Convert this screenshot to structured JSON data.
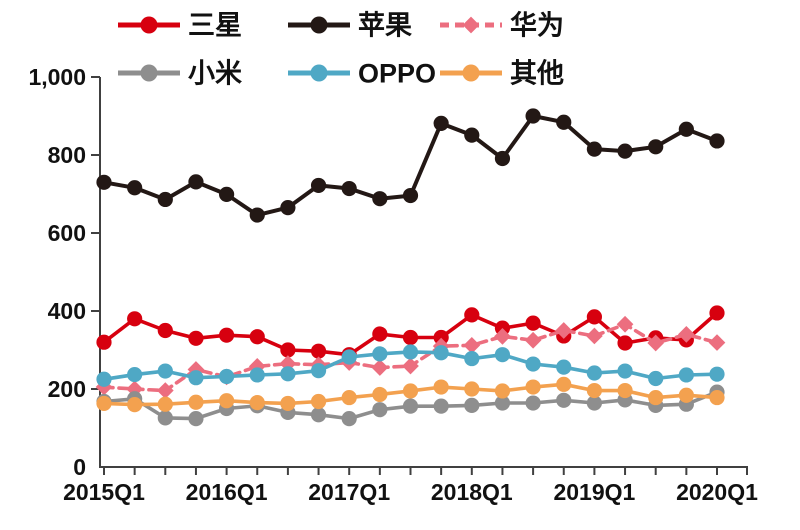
{
  "chart_data": {
    "type": "line",
    "title": "",
    "background": "#ffffff",
    "axis_color": "#404040",
    "grid": false,
    "legend_position": "top",
    "x": [
      "2015Q1",
      "2015Q2",
      "2015Q3",
      "2015Q4",
      "2016Q1",
      "2016Q2",
      "2016Q3",
      "2016Q4",
      "2017Q1",
      "2017Q2",
      "2017Q3",
      "2017Q4",
      "2018Q1",
      "2018Q2",
      "2018Q3",
      "2018Q4",
      "2019Q1",
      "2019Q2",
      "2019Q3",
      "2019Q4",
      "2020Q1"
    ],
    "x_axis_labels_shown": [
      "2015Q1",
      "2016Q1",
      "2017Q1",
      "2018Q1",
      "2019Q1",
      "2020Q1"
    ],
    "y_ticks": [
      "0",
      "200",
      "400",
      "600",
      "800",
      "1,000"
    ],
    "y_range": [
      0,
      1000
    ],
    "series": [
      {
        "id": "samsung",
        "name": "三星",
        "color": "#D7000F",
        "line_style": "solid",
        "marker": "circle",
        "values": [
          320,
          380,
          350,
          330,
          338,
          334,
          300,
          297,
          288,
          341,
          332,
          332,
          390,
          356,
          369,
          336,
          385,
          318,
          331,
          326,
          395
        ]
      },
      {
        "id": "apple",
        "name": "苹果",
        "color": "#231815",
        "line_style": "solid",
        "marker": "circle",
        "values": [
          730,
          716,
          686,
          731,
          699,
          646,
          665,
          722,
          714,
          688,
          696,
          881,
          851,
          791,
          900,
          884,
          815,
          810,
          821,
          866,
          836
        ]
      },
      {
        "id": "huawei",
        "name": "华为",
        "color": "#EC6E7F",
        "line_style": "dashed",
        "marker": "diamond",
        "values": [
          205,
          200,
          196,
          250,
          231,
          258,
          265,
          262,
          268,
          255,
          259,
          310,
          312,
          335,
          325,
          350,
          336,
          366,
          318,
          340,
          319
        ]
      },
      {
        "id": "xiaomi",
        "name": "小米",
        "color": "#8E8E8E",
        "line_style": "solid",
        "marker": "circle",
        "values": [
          168,
          175,
          126,
          124,
          150,
          157,
          140,
          134,
          124,
          147,
          156,
          156,
          158,
          164,
          164,
          171,
          164,
          172,
          158,
          161,
          192
        ]
      },
      {
        "id": "oppo",
        "name": "OPPO",
        "color": "#4FA8C5",
        "line_style": "solid",
        "marker": "circle",
        "values": [
          225,
          237,
          246,
          229,
          232,
          236,
          239,
          247,
          282,
          290,
          295,
          293,
          278,
          288,
          264,
          256,
          241,
          246,
          227,
          236,
          238
        ]
      },
      {
        "id": "others",
        "name": "其他",
        "color": "#F3A14F",
        "line_style": "solid",
        "marker": "circle",
        "values": [
          163,
          160,
          161,
          166,
          170,
          165,
          163,
          168,
          178,
          186,
          195,
          205,
          200,
          195,
          205,
          212,
          196,
          196,
          178,
          184,
          178
        ]
      }
    ]
  }
}
